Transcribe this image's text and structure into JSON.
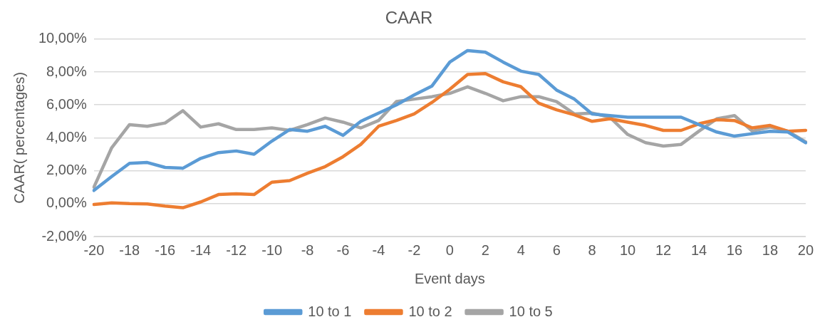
{
  "chart_data": {
    "type": "line",
    "title": "CAAR",
    "xlabel": "Event days",
    "ylabel": "CAAR( percentages)",
    "categories": [
      "-20",
      null,
      "-18",
      null,
      "-16",
      null,
      "-14",
      null,
      "-12",
      null,
      "-10",
      null,
      "-8",
      null,
      "-6",
      null,
      "-4",
      null,
      "-2",
      null,
      "0",
      null,
      "2",
      null,
      "4",
      null,
      "6",
      null,
      "8",
      null,
      "10",
      null,
      "12",
      null,
      "14",
      null,
      "16",
      null,
      "18",
      null,
      "20"
    ],
    "series": [
      {
        "name": "10 to 1",
        "color": "#5b9bd5",
        "values": [
          0.8,
          1.65,
          2.45,
          2.5,
          2.2,
          2.15,
          2.75,
          3.1,
          3.2,
          3.0,
          3.8,
          4.5,
          4.4,
          4.7,
          4.15,
          5.0,
          5.5,
          6.0,
          6.6,
          7.15,
          8.6,
          9.3,
          9.2,
          8.6,
          8.05,
          7.85,
          6.9,
          6.35,
          5.45,
          5.35,
          5.25,
          5.25,
          5.25,
          5.25,
          4.8,
          4.35,
          4.1,
          4.25,
          4.4,
          4.35,
          3.7
        ]
      },
      {
        "name": "10 to 2",
        "color": "#ed7d31",
        "values": [
          -0.05,
          0.05,
          0.0,
          -0.02,
          -0.15,
          -0.25,
          0.1,
          0.55,
          0.6,
          0.55,
          1.3,
          1.4,
          1.85,
          2.25,
          2.85,
          3.6,
          4.7,
          5.05,
          5.45,
          6.15,
          6.95,
          7.85,
          7.9,
          7.4,
          7.1,
          6.1,
          5.7,
          5.4,
          5.0,
          5.15,
          4.95,
          4.75,
          4.45,
          4.45,
          4.85,
          5.1,
          5.05,
          4.6,
          4.75,
          4.4,
          4.45
        ]
      },
      {
        "name": "10 to 5",
        "color": "#a5a5a5",
        "values": [
          1.0,
          3.4,
          4.8,
          4.7,
          4.9,
          5.65,
          4.65,
          4.85,
          4.5,
          4.5,
          4.6,
          4.45,
          4.8,
          5.2,
          4.95,
          4.6,
          5.05,
          6.2,
          6.35,
          6.5,
          6.7,
          7.1,
          6.7,
          6.25,
          6.5,
          6.5,
          6.2,
          5.45,
          5.5,
          5.25,
          4.2,
          3.7,
          3.5,
          3.6,
          4.4,
          5.15,
          5.35,
          4.4,
          4.65,
          4.4,
          3.75
        ]
      }
    ],
    "ylim": [
      -2,
      10
    ],
    "yticks": [
      {
        "value": -2,
        "label": "-2,00%"
      },
      {
        "value": 0,
        "label": "0,00%"
      },
      {
        "value": 2,
        "label": "2,00%"
      },
      {
        "value": 4,
        "label": "4,00%"
      },
      {
        "value": 6,
        "label": "6,00%"
      },
      {
        "value": 8,
        "label": "8,00%"
      },
      {
        "value": 10,
        "label": "10,00%"
      }
    ],
    "grid": "y",
    "legend": "bottom",
    "marker": "none",
    "line_style": "solid"
  }
}
